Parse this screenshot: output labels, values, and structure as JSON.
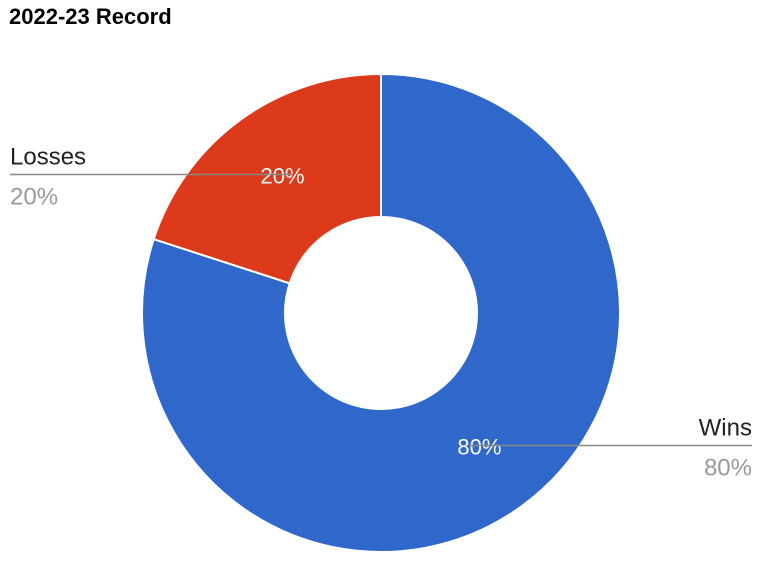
{
  "chart_data": {
    "type": "pie",
    "title": "2022-23 Record",
    "slices": [
      {
        "label": "Wins",
        "value": 80,
        "display": "80%",
        "color": "#3067cb"
      },
      {
        "label": "Losses",
        "value": 20,
        "display": "20%",
        "color": "#dc3a1b"
      }
    ],
    "donut": true,
    "legend": "labeled callouts",
    "label_color": "#222222",
    "percent_label_color": "#999999",
    "slice_text_color": "#ffffff",
    "leader_line_color": "#888888"
  }
}
